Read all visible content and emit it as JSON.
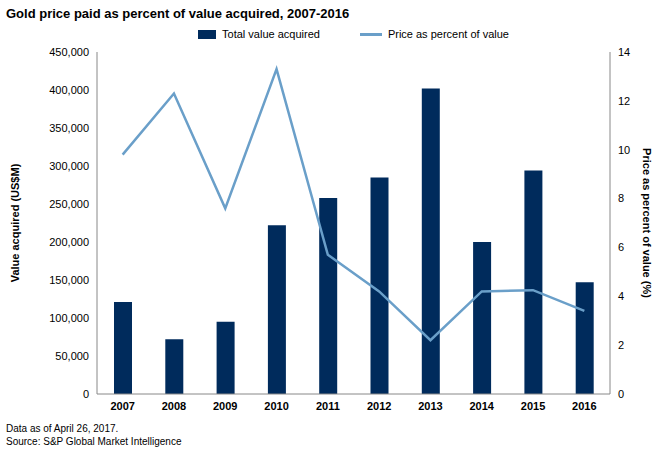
{
  "chart_data": {
    "type": "bar_line",
    "title": "Gold price paid as percent of value acquired, 2007-2016",
    "categories": [
      "2007",
      "2008",
      "2009",
      "2010",
      "2011",
      "2012",
      "2013",
      "2014",
      "2015",
      "2016"
    ],
    "series": [
      {
        "name": "Total value acquired",
        "type": "bar",
        "color": "#002b5c",
        "values": [
          121000,
          72000,
          95000,
          222000,
          258000,
          285000,
          402000,
          200000,
          294000,
          147000
        ]
      },
      {
        "name": "Price as percent of value",
        "type": "line",
        "axis": "y2",
        "color": "#6a9fc9",
        "marker": "none",
        "values": [
          9.8,
          12.3,
          7.6,
          13.3,
          5.7,
          4.2,
          2.2,
          4.2,
          4.25,
          3.4
        ]
      }
    ],
    "y_label": "Value acquired (US$M)",
    "y2_label": "Price as percent of value (%)",
    "ylim": [
      0,
      450000
    ],
    "yticks": [
      0,
      {
        "value": 50000,
        "label": "50,000"
      },
      {
        "value": 100000,
        "label": "100,000"
      },
      {
        "value": 150000,
        "label": "150,000"
      },
      {
        "value": 200000,
        "label": "200,000"
      },
      {
        "value": 250000,
        "label": "250,000"
      },
      {
        "value": 300000,
        "label": "300,000"
      },
      {
        "value": 350000,
        "label": "350,000"
      },
      {
        "value": 400000,
        "label": "400,000"
      },
      {
        "value": 450000,
        "label": "450,000"
      }
    ],
    "y2lim": [
      0,
      14
    ],
    "y2ticks": [
      0,
      2,
      4,
      6,
      8,
      10,
      12,
      14
    ],
    "grid": false,
    "legend": "top",
    "notes": [
      "Data as of April 26, 2017.",
      "Source: S&P Global Market Intelligence"
    ]
  }
}
